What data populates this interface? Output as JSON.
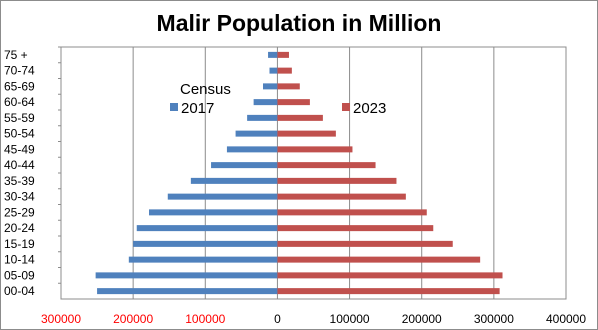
{
  "chart_data": {
    "type": "bar",
    "orientation": "horizontal",
    "title": "Malir Population in Million",
    "legend_title": "Census",
    "categories": [
      "75 +",
      "70-74",
      "65-69",
      "60-64",
      "55-59",
      "50-54",
      "45-49",
      "40-44",
      "35-39",
      "30-34",
      "25-29",
      "20-24",
      "15-19",
      "10-14",
      "05-09",
      "00-04"
    ],
    "series": [
      {
        "name": "2017",
        "color": "#4f81bd",
        "side": "left",
        "values": [
          13000,
          11000,
          20000,
          33000,
          42000,
          58000,
          70000,
          92000,
          120000,
          152000,
          178000,
          195000,
          200000,
          206000,
          252000,
          250000
        ]
      },
      {
        "name": "2023",
        "color": "#c0504d",
        "side": "right",
        "values": [
          16000,
          20000,
          31000,
          45000,
          63000,
          81000,
          104000,
          136000,
          165000,
          178000,
          207000,
          216000,
          243000,
          281000,
          312000,
          308000
        ]
      }
    ],
    "x_ticks": [
      {
        "label": "300000",
        "value": -300000,
        "color": "#ff0000"
      },
      {
        "label": "200000",
        "value": -200000,
        "color": "#ff0000"
      },
      {
        "label": "100000",
        "value": -100000,
        "color": "#ff0000"
      },
      {
        "label": "0",
        "value": 0,
        "color": "#000000"
      },
      {
        "label": "100000",
        "value": 100000,
        "color": "#000000"
      },
      {
        "label": "200000",
        "value": 200000,
        "color": "#000000"
      },
      {
        "label": "300000",
        "value": 300000,
        "color": "#000000"
      },
      {
        "label": "400000",
        "value": 400000,
        "color": "#000000"
      }
    ],
    "xlim": [
      -300000,
      400000
    ],
    "grid": true,
    "legend_position": "top-left"
  }
}
